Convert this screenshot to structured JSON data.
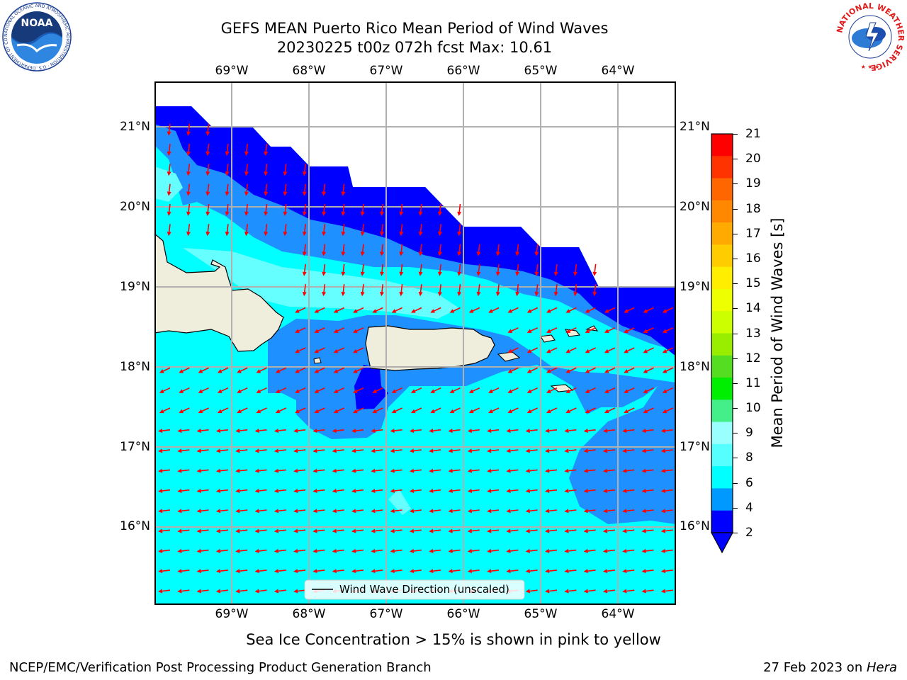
{
  "header": {
    "title_line1": "GEFS MEAN Puerto Rico Mean Period of Wind Waves",
    "title_line2": "20230225 t00z 072h fcst   Max: 10.61"
  },
  "logos": {
    "left": {
      "icon": "noaa-logo",
      "text": "NOAA",
      "ring_text": "NATIONAL OCEANIC AND ATMOSPHERIC ADMINISTRATION · U.S. DEPARTMENT OF COMMERCE"
    },
    "right": {
      "icon": "nws-logo",
      "ring_text": "NATIONAL WEATHER SERVICE"
    }
  },
  "map": {
    "lon_ticks": [
      "69°W",
      "68°W",
      "67°W",
      "66°W",
      "65°W",
      "64°W"
    ],
    "lat_ticks": [
      "21°N",
      "20°N",
      "19°N",
      "18°N",
      "17°N",
      "16°N"
    ],
    "legend_label": "Wind Wave Direction (unscaled)",
    "wave_direction": "from east-northeast",
    "colors": {
      "land": "#efeddc",
      "blue_2_4": "#0000ff",
      "azure_4_6": "#1e90ff",
      "cyan_6_8": "#00ffff",
      "light_cyan_8_9": "#66ffff",
      "arrows": "#ff0000",
      "grid": "#b0b0b0"
    }
  },
  "colorbar": {
    "label": "Mean Period of Wind Waves [s]",
    "ticks": [
      "21",
      "20",
      "19",
      "18",
      "17",
      "16",
      "15",
      "14",
      "13",
      "12",
      "11",
      "10",
      "9",
      "8",
      "6",
      "4",
      "2"
    ],
    "colors": [
      "#ff0000",
      "#ff3300",
      "#ff6600",
      "#ff8800",
      "#ffaa00",
      "#ffcc00",
      "#ffee00",
      "#eeff00",
      "#ccff00",
      "#99ee00",
      "#55dd22",
      "#00ee00",
      "#44ee88",
      "#99ffff",
      "#55ffff",
      "#00ffff",
      "#0099ff",
      "#0000ff"
    ]
  },
  "footer": {
    "sea_ice_note": "Sea Ice Concentration > 15% is shown in pink to yellow",
    "branch": "NCEP/EMC/Verification Post Processing Product Generation Branch",
    "date": "27 Feb 2023 on ",
    "host": "Hera"
  }
}
